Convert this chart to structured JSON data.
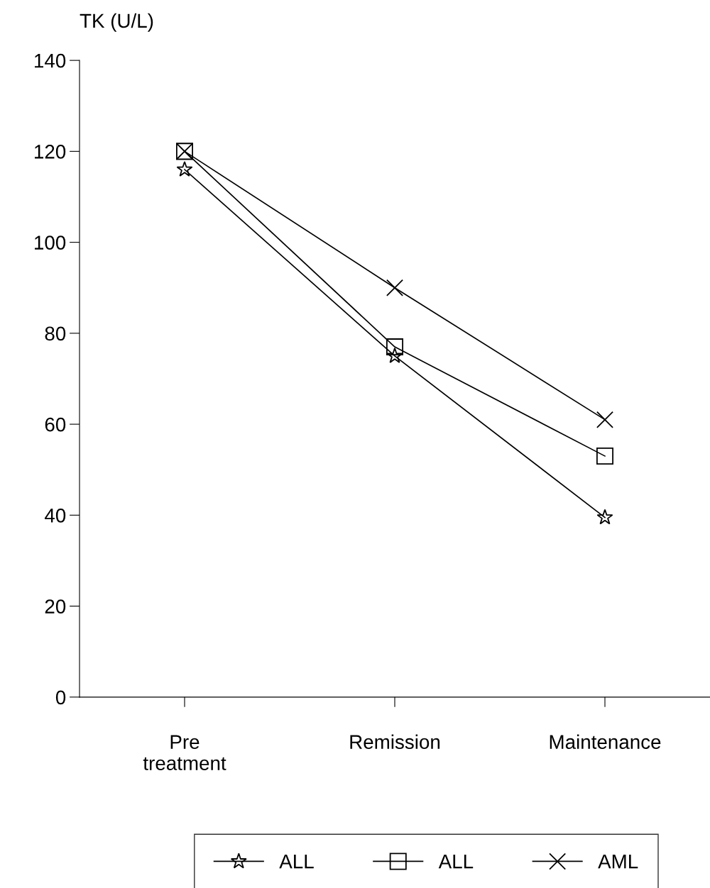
{
  "chart_data": {
    "type": "line",
    "ylabel": "TK (U/L)",
    "categories": [
      "Pre\ntreatment",
      "Remission",
      "Maintenance"
    ],
    "series": [
      {
        "name": "ALL",
        "color": "#000000",
        "marker": "star",
        "values": [
          116,
          75,
          39.5
        ]
      },
      {
        "name": "ALL",
        "color": "#000000",
        "marker": "square",
        "values": [
          120,
          77,
          53
        ]
      },
      {
        "name": "AML",
        "color": "#000000",
        "marker": "cross",
        "values": [
          120,
          90,
          61
        ]
      }
    ],
    "ylim": [
      0,
      140
    ],
    "yticks": [
      0,
      20,
      40,
      60,
      80,
      100,
      120,
      140
    ],
    "grid": false,
    "legend": "bottom",
    "line_style": "solid"
  }
}
